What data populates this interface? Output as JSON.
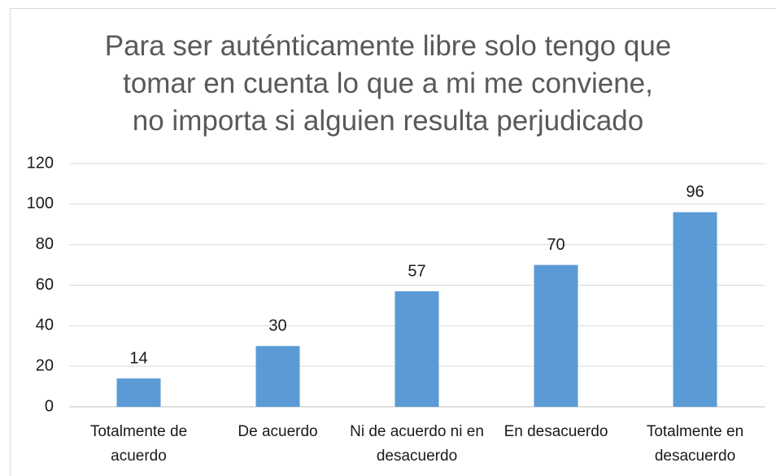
{
  "chart_data": {
    "type": "bar",
    "title": "Para ser auténticamente libre solo tengo que tomar en cuenta lo que a mi me conviene, no importa si alguien resulta perjudicado",
    "categories": [
      "Totalmente de acuerdo",
      "De acuerdo",
      "Ni de acuerdo ni en desacuerdo",
      "En desacuerdo",
      "Totalmente en desacuerdo"
    ],
    "values": [
      14,
      30,
      57,
      70,
      96
    ],
    "color": "#5b9bd5",
    "ylim": [
      0,
      120
    ],
    "yticks": [
      0,
      20,
      40,
      60,
      80,
      100,
      120
    ],
    "grid": true
  }
}
